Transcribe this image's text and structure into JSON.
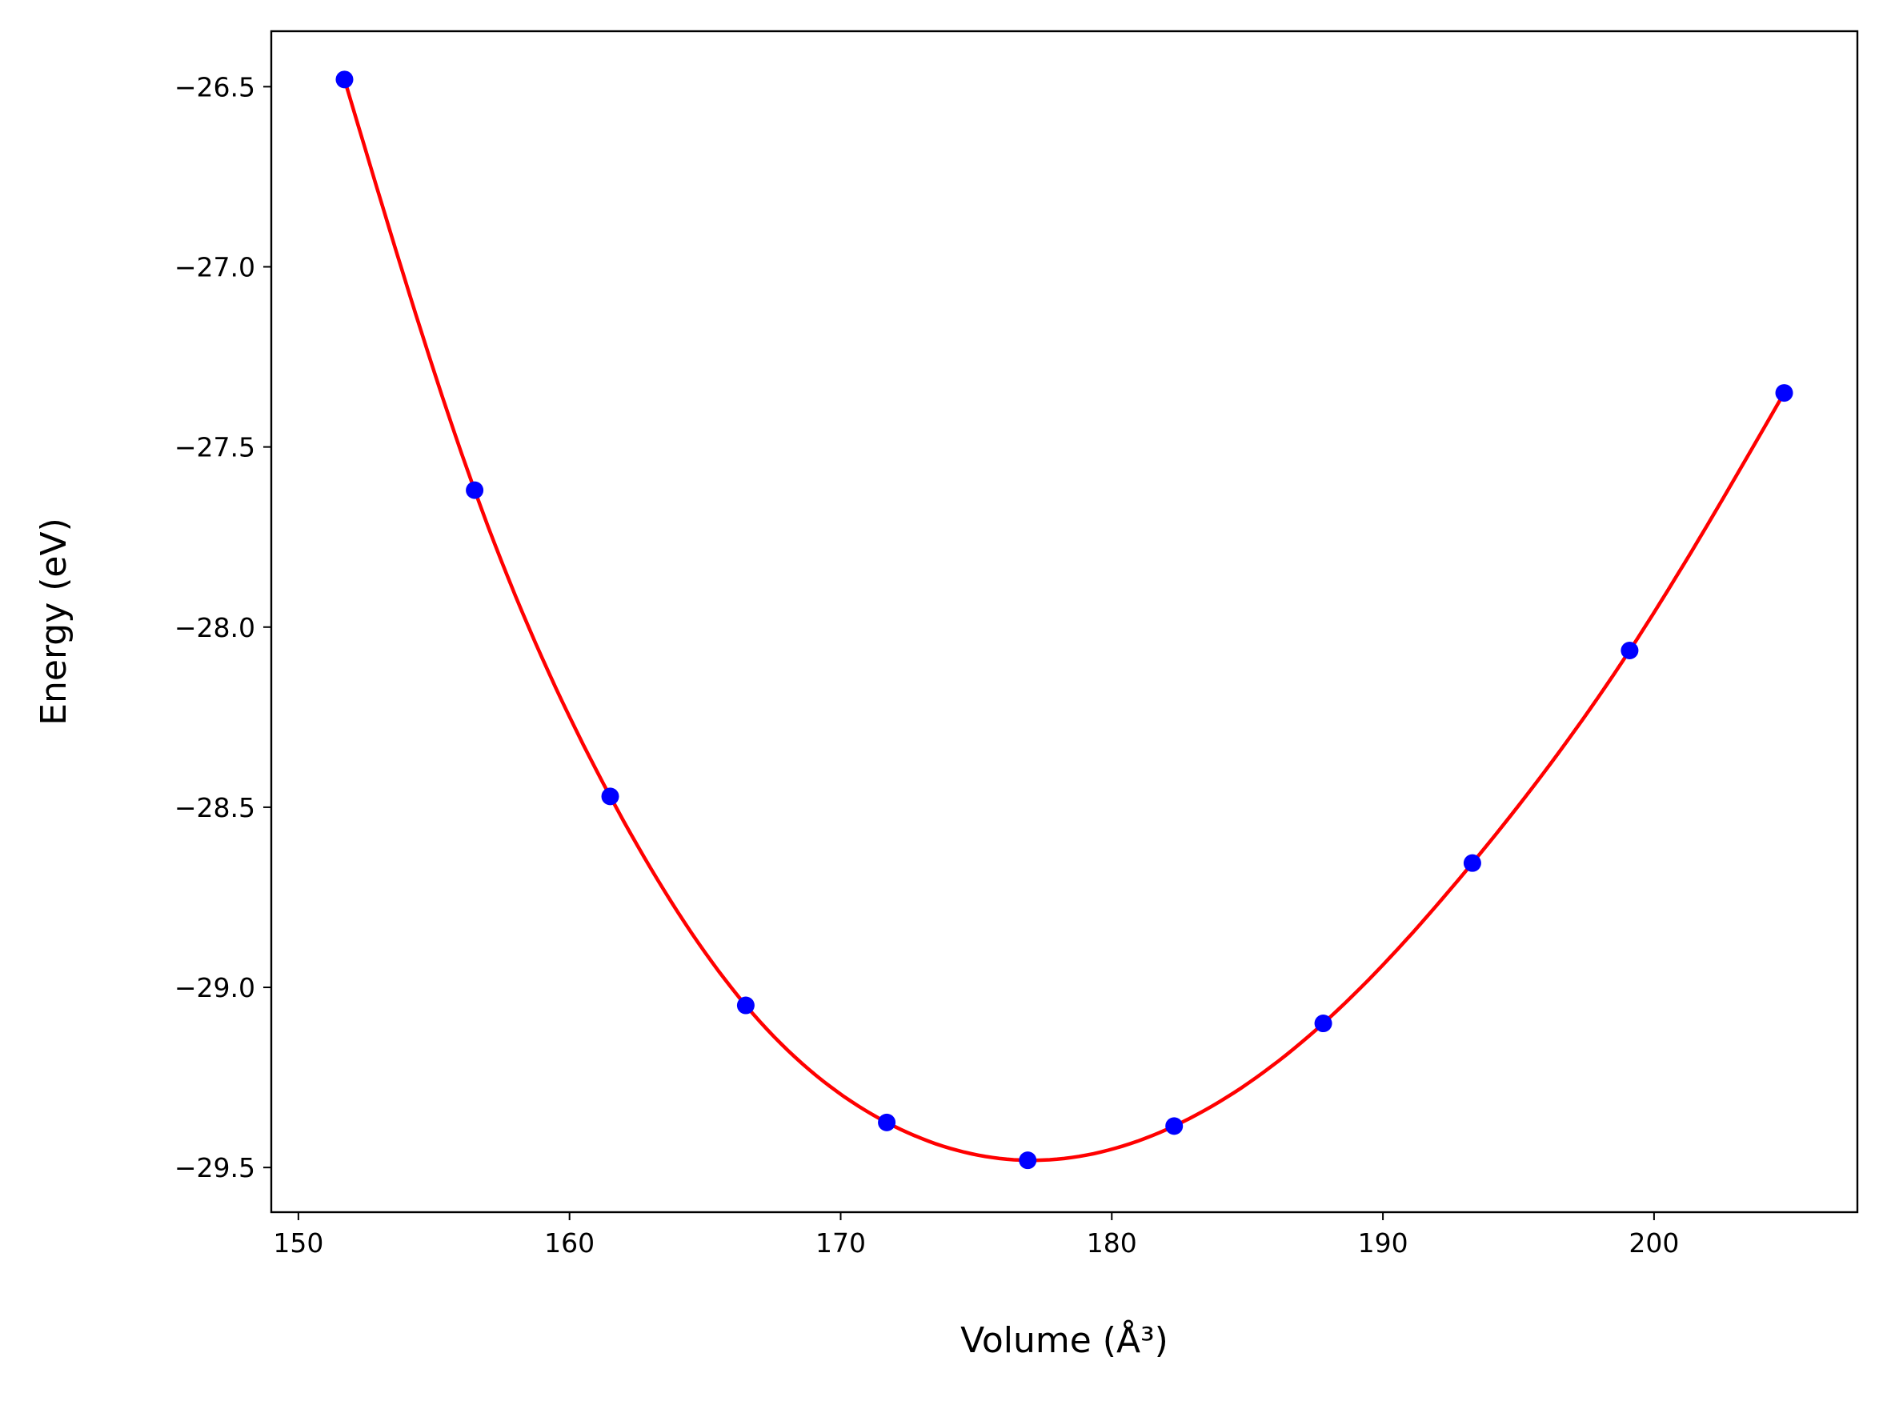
{
  "chart_data": {
    "type": "line",
    "title": "",
    "xlabel": "Volume (Å³)",
    "ylabel": "Energy (eV)",
    "xlim": [
      149.0,
      207.5
    ],
    "ylim": [
      -29.624,
      -26.346
    ],
    "xticks": [
      150,
      160,
      170,
      180,
      190,
      200
    ],
    "xtick_labels": [
      "150",
      "160",
      "170",
      "180",
      "190",
      "200"
    ],
    "yticks": [
      -26.5,
      -27.0,
      -27.5,
      -28.0,
      -28.5,
      -29.0,
      -29.5
    ],
    "ytick_labels": [
      "−26.5",
      "−27.0",
      "−27.5",
      "−28.0",
      "−28.5",
      "−29.0",
      "−29.5"
    ],
    "grid": false,
    "series": [
      {
        "kind": "points",
        "color": "#0000ff",
        "x": [
          151.7,
          156.5,
          161.5,
          166.5,
          171.7,
          176.9,
          182.3,
          187.8,
          193.3,
          199.1,
          204.8
        ],
        "y": [
          -26.48,
          -27.62,
          -28.47,
          -29.05,
          -29.375,
          -29.48,
          -29.385,
          -29.1,
          -28.655,
          -28.065,
          -27.35
        ]
      },
      {
        "kind": "fit-curve",
        "color": "#ff0000"
      }
    ]
  }
}
